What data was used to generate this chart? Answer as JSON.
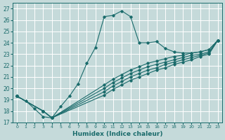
{
  "xlabel": "Humidex (Indice chaleur)",
  "xlim": [
    -0.5,
    23.5
  ],
  "ylim": [
    17,
    27.5
  ],
  "yticks": [
    17,
    18,
    19,
    20,
    21,
    22,
    23,
    24,
    25,
    26,
    27
  ],
  "xticks": [
    0,
    1,
    2,
    3,
    4,
    5,
    6,
    7,
    8,
    9,
    10,
    11,
    12,
    13,
    14,
    15,
    16,
    17,
    18,
    19,
    20,
    21,
    22,
    23
  ],
  "background_color": "#c5dada",
  "grid_color": "#b0cccc",
  "line_color": "#1a6b6b",
  "lines": [
    {
      "x": [
        0,
        1,
        2,
        3,
        4,
        5,
        6,
        7,
        8,
        9,
        10,
        11,
        12,
        13,
        14,
        15,
        16,
        17,
        18,
        19,
        20,
        21,
        22,
        23
      ],
      "y": [
        19.3,
        18.9,
        18.2,
        17.5,
        17.4,
        18.4,
        19.3,
        20.4,
        22.2,
        23.6,
        26.3,
        26.4,
        26.8,
        26.3,
        24.0,
        24.0,
        24.1,
        23.5,
        23.2,
        23.1,
        23.1,
        23.2,
        23.4,
        24.2
      ]
    },
    {
      "comment": "line 2 - starts ~19.3 at x=0, goes to ~24.2 at x=23, through x=3 ~18, x=4 ~17.4",
      "x": [
        0,
        3,
        4,
        10,
        11,
        12,
        13,
        14,
        15,
        16,
        17,
        18,
        19,
        20,
        21,
        22,
        23
      ],
      "y": [
        19.3,
        18.0,
        17.4,
        20.3,
        20.8,
        21.2,
        21.6,
        21.9,
        22.2,
        22.4,
        22.6,
        22.8,
        22.9,
        23.1,
        23.2,
        23.4,
        24.2
      ]
    },
    {
      "x": [
        0,
        3,
        4,
        10,
        11,
        12,
        13,
        14,
        15,
        16,
        17,
        18,
        19,
        20,
        21,
        22,
        23
      ],
      "y": [
        19.3,
        18.0,
        17.4,
        20.0,
        20.5,
        20.9,
        21.3,
        21.6,
        21.9,
        22.1,
        22.3,
        22.5,
        22.7,
        22.9,
        23.0,
        23.2,
        24.2
      ]
    },
    {
      "x": [
        0,
        3,
        4,
        10,
        11,
        12,
        13,
        14,
        15,
        16,
        17,
        18,
        19,
        20,
        21,
        22,
        23
      ],
      "y": [
        19.3,
        18.0,
        17.4,
        19.7,
        20.2,
        20.6,
        21.0,
        21.3,
        21.6,
        21.8,
        22.1,
        22.3,
        22.5,
        22.7,
        22.9,
        23.1,
        24.2
      ]
    },
    {
      "x": [
        0,
        3,
        4,
        10,
        11,
        12,
        13,
        14,
        15,
        16,
        17,
        18,
        19,
        20,
        21,
        22,
        23
      ],
      "y": [
        19.3,
        18.0,
        17.4,
        19.4,
        19.9,
        20.3,
        20.7,
        21.0,
        21.3,
        21.6,
        21.8,
        22.1,
        22.3,
        22.5,
        22.8,
        23.0,
        24.2
      ]
    }
  ]
}
